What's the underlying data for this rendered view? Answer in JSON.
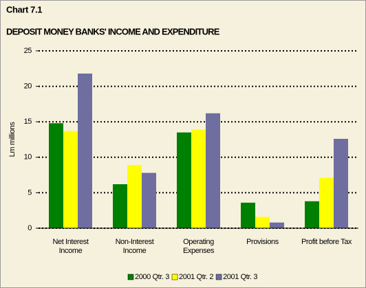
{
  "chart_data": {
    "type": "bar",
    "title": "Chart 7.1",
    "subtitle": "DEPOSIT MONEY BANKS' INCOME AND EXPENDITURE",
    "y_label": "Lm millions",
    "categories": [
      "Net Interest\nIncome",
      "Non-Interest\nIncome",
      "Operating\nExpenses",
      "Provisions",
      "Profit before Tax"
    ],
    "series": [
      {
        "name": "2000 Qtr. 3",
        "color": "#008000",
        "values": [
          14.8,
          6.2,
          13.5,
          3.6,
          3.8
        ]
      },
      {
        "name": "2001 Qtr. 2",
        "color": "#ffff00",
        "values": [
          13.7,
          8.9,
          13.9,
          1.6,
          7.1
        ]
      },
      {
        "name": "2001 Qtr. 3",
        "color": "#6e6ea0",
        "values": [
          21.8,
          7.8,
          16.2,
          0.8,
          12.6
        ]
      }
    ],
    "ylim": [
      0,
      25
    ],
    "yticks": [
      0,
      5,
      10,
      15,
      20,
      25
    ],
    "grid": true,
    "legend": "bottom"
  }
}
